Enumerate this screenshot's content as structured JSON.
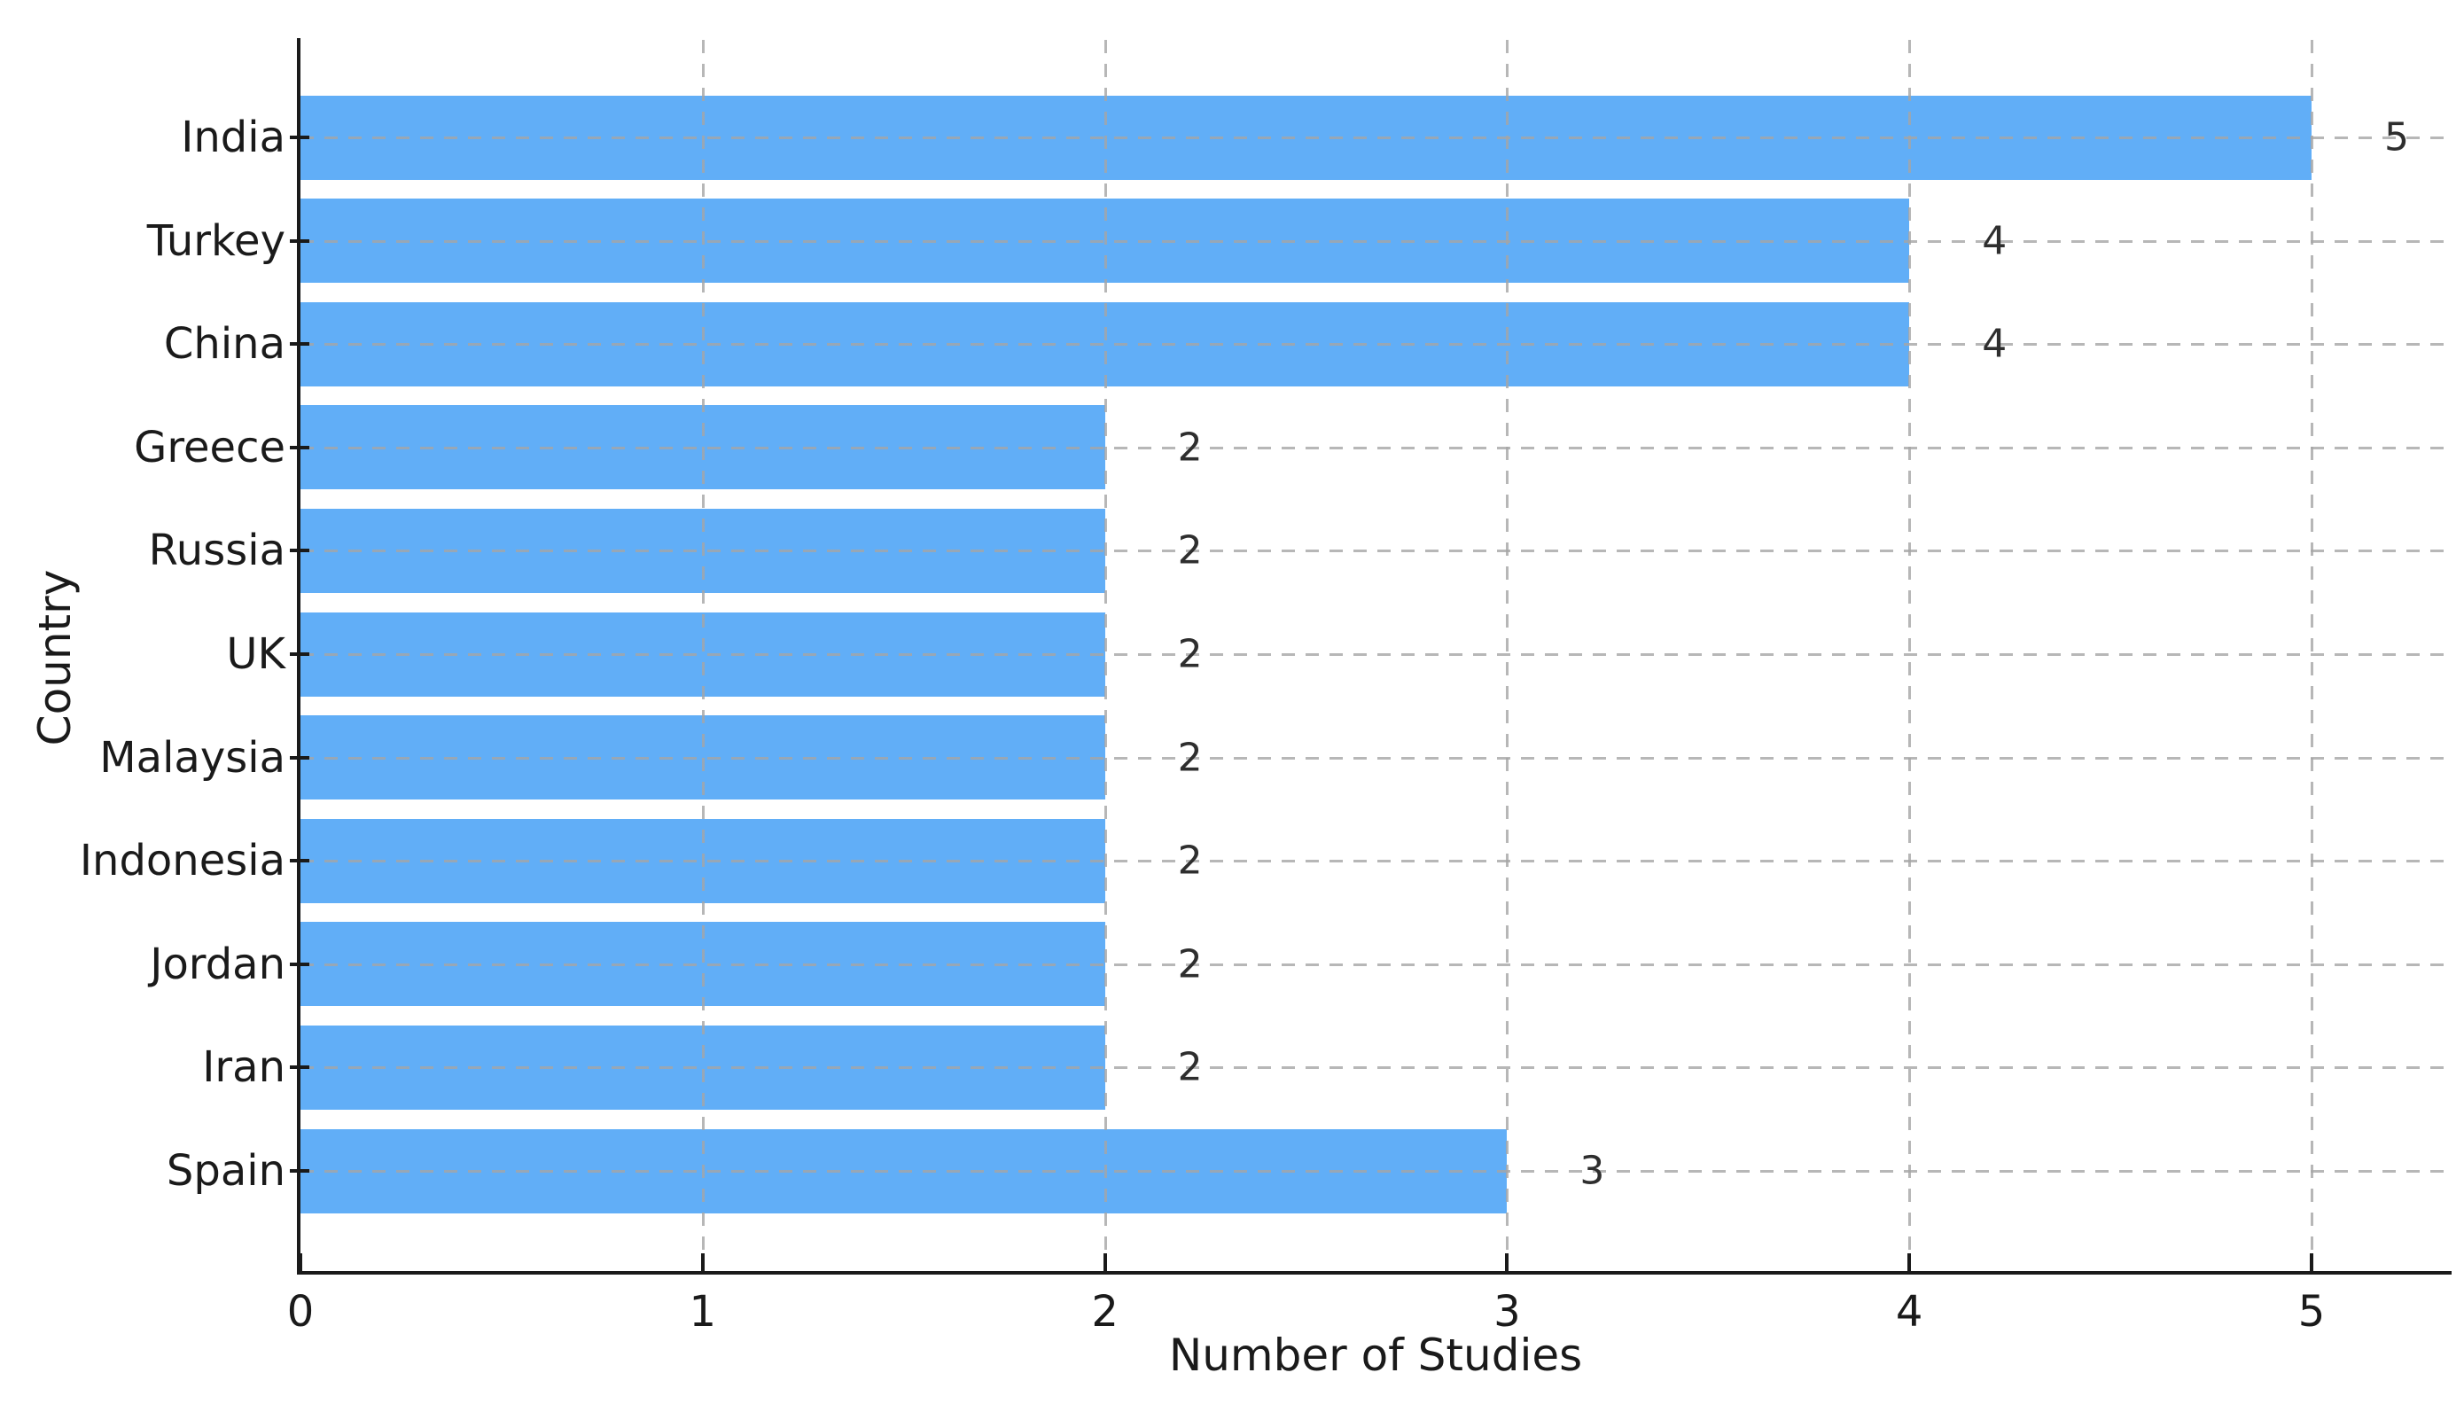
{
  "figure": {
    "background_color": "#ffffff"
  },
  "chart_data": {
    "type": "bar",
    "orientation": "horizontal",
    "xlabel": "Number of Studies",
    "ylabel": "Country",
    "categories": [
      "India",
      "Turkey",
      "China",
      "Greece",
      "Russia",
      "UK",
      "Malaysia",
      "Indonesia",
      "Jordan",
      "Iran",
      "Spain"
    ],
    "values": [
      5,
      4,
      4,
      2,
      2,
      2,
      2,
      2,
      2,
      2,
      3
    ],
    "value_labels": [
      "5",
      "4",
      "4",
      "2",
      "2",
      "2",
      "2",
      "2",
      "2",
      "2",
      "3"
    ],
    "x_ticks": [
      "0",
      "1",
      "2",
      "3",
      "4",
      "5"
    ],
    "xlim": [
      0,
      5.35
    ],
    "grid": "both-dashed",
    "legend_position": "none",
    "bar_color": "#61aef7",
    "grid_color": "#a5a5a5",
    "axis_color": "#1a1a1a",
    "value_label_color": "#2e2e2e"
  }
}
